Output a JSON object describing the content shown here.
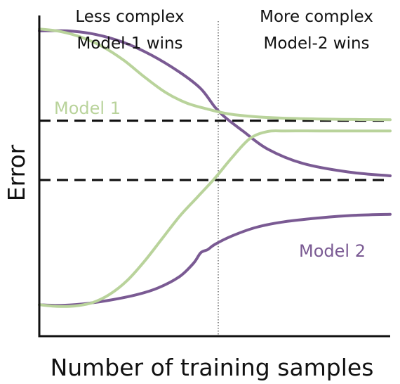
{
  "chart_data": {
    "type": "line",
    "title": "",
    "xlabel": "Number of training samples",
    "ylabel": "Error",
    "grid": false,
    "legend": "none",
    "xlim": [
      0,
      100
    ],
    "ylim": [
      0,
      100
    ],
    "divider_x": 51,
    "regions": [
      {
        "line1": "Less complex",
        "line2": "Model-1 wins"
      },
      {
        "line1": "More complex",
        "line2": "Model-2 wins"
      }
    ],
    "asymptotes": [
      {
        "name": "model-1-asymptote",
        "y": 67.2
      },
      {
        "name": "model-2-asymptote",
        "y": 48.7
      }
    ],
    "series_labels": {
      "model1": "Model 1",
      "model2": "Model 2"
    },
    "colors": {
      "model1": "#b9d39b",
      "model2": "#7a5a93",
      "axis": "#111111",
      "divider": "#555555"
    },
    "series": [
      {
        "key": "model1",
        "curves": [
          {
            "name": "model-1-upper-curve",
            "points": [
              [
                0,
                95.8
              ],
              [
                6,
                95.0
              ],
              [
                12,
                93.2
              ],
              [
                18,
                90.3
              ],
              [
                24,
                86.1
              ],
              [
                30,
                80.8
              ],
              [
                36,
                76.0
              ],
              [
                42,
                72.7
              ],
              [
                48,
                70.8
              ],
              [
                54,
                69.3
              ],
              [
                62,
                68.4
              ],
              [
                72,
                67.9
              ],
              [
                86,
                67.6
              ],
              [
                100,
                67.5
              ]
            ]
          },
          {
            "name": "model-1-lower-curve",
            "points": [
              [
                0,
                9.8
              ],
              [
                5,
                9.3
              ],
              [
                10,
                9.4
              ],
              [
                15,
                10.4
              ],
              [
                20,
                13.0
              ],
              [
                25,
                17.3
              ],
              [
                30,
                23.4
              ],
              [
                35,
                30.4
              ],
              [
                40,
                37.4
              ],
              [
                45,
                43.3
              ],
              [
                50,
                49.2
              ],
              [
                55,
                55.8
              ],
              [
                60,
                61.6
              ],
              [
                65,
                63.8
              ],
              [
                70,
                64.0
              ],
              [
                80,
                64.0
              ],
              [
                90,
                64.0
              ],
              [
                100,
                64.0
              ]
            ]
          }
        ]
      },
      {
        "key": "model2",
        "curves": [
          {
            "name": "model-2-upper-curve",
            "points": [
              [
                0,
                95.2
              ],
              [
                8,
                95.2
              ],
              [
                16,
                94.1
              ],
              [
                24,
                91.6
              ],
              [
                32,
                87.6
              ],
              [
                40,
                82.3
              ],
              [
                46,
                77.2
              ],
              [
                50,
                71.5
              ],
              [
                53,
                68.2
              ],
              [
                58,
                64.0
              ],
              [
                65,
                58.4
              ],
              [
                75,
                53.9
              ],
              [
                88,
                51.2
              ],
              [
                100,
                50.0
              ]
            ]
          },
          {
            "name": "model-2-lower-curve",
            "points": [
              [
                0,
                9.8
              ],
              [
                6,
                9.6
              ],
              [
                12,
                10.0
              ],
              [
                20,
                11.2
              ],
              [
                28,
                13.0
              ],
              [
                34,
                15.1
              ],
              [
                40,
                18.6
              ],
              [
                44,
                22.8
              ],
              [
                46,
                26.0
              ],
              [
                48,
                27.0
              ],
              [
                50,
                28.6
              ],
              [
                55,
                31.3
              ],
              [
                62,
                34.0
              ],
              [
                70,
                35.7
              ],
              [
                80,
                36.9
              ],
              [
                90,
                37.7
              ],
              [
                100,
                38.0
              ]
            ]
          }
        ]
      }
    ]
  }
}
